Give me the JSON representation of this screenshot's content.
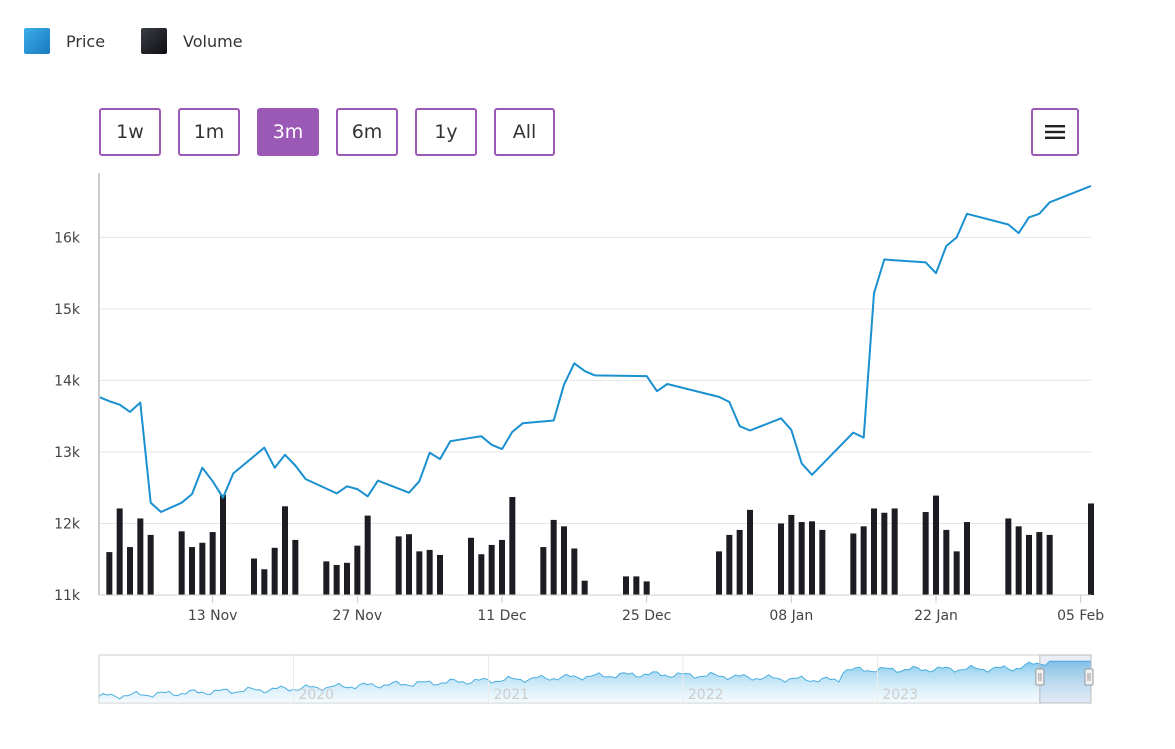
{
  "legend": [
    {
      "label": "Price",
      "color": "#1a90d0"
    },
    {
      "label": "Volume",
      "color": "#1c1c22"
    }
  ],
  "range_buttons": [
    {
      "label": "1w",
      "active": false
    },
    {
      "label": "1m",
      "active": false
    },
    {
      "label": "3m",
      "active": true
    },
    {
      "label": "6m",
      "active": false
    },
    {
      "label": "1y",
      "active": false
    },
    {
      "label": "All",
      "active": false
    }
  ],
  "menu": {
    "icon": "hamburger-menu-icon"
  },
  "colors": {
    "accent": "#9b59b6",
    "price": "#1a90d0",
    "volume": "#1c1c22",
    "grid": "#e6e6e6"
  },
  "chart_data": {
    "type": "line",
    "title": "",
    "xlabel": "",
    "ylabel": "",
    "ylim": [
      11000,
      16900
    ],
    "xlim": [
      "2023-11-02",
      "2024-02-06"
    ],
    "y_ticks": [
      {
        "label": "11k",
        "value": 11000
      },
      {
        "label": "12k",
        "value": 12000
      },
      {
        "label": "13k",
        "value": 13000
      },
      {
        "label": "14k",
        "value": 14000
      },
      {
        "label": "15k",
        "value": 15000
      },
      {
        "label": "16k",
        "value": 16000
      }
    ],
    "x_ticks": [
      {
        "label": "13 Nov",
        "date": "2023-11-13"
      },
      {
        "label": "27 Nov",
        "date": "2023-11-27"
      },
      {
        "label": "11 Dec",
        "date": "2023-12-11"
      },
      {
        "label": "25 Dec",
        "date": "2023-12-25"
      },
      {
        "label": "08 Jan",
        "date": "2024-01-08"
      },
      {
        "label": "22 Jan",
        "date": "2024-01-22"
      },
      {
        "label": "05 Feb",
        "date": "2024-02-05"
      }
    ],
    "series": [
      {
        "name": "Price",
        "points": [
          [
            "2023-11-02",
            13770
          ],
          [
            "2023-11-03",
            13710
          ],
          [
            "2023-11-04",
            13660
          ],
          [
            "2023-11-05",
            13560
          ],
          [
            "2023-11-06",
            13690
          ],
          [
            "2023-11-07",
            12290
          ],
          [
            "2023-11-08",
            12160
          ],
          [
            "2023-11-10",
            12290
          ],
          [
            "2023-11-11",
            12410
          ],
          [
            "2023-11-12",
            12780
          ],
          [
            "2023-11-13",
            12590
          ],
          [
            "2023-11-14",
            12360
          ],
          [
            "2023-11-15",
            12700
          ],
          [
            "2023-11-18",
            13060
          ],
          [
            "2023-11-19",
            12780
          ],
          [
            "2023-11-20",
            12960
          ],
          [
            "2023-11-21",
            12810
          ],
          [
            "2023-11-22",
            12620
          ],
          [
            "2023-11-25",
            12420
          ],
          [
            "2023-11-26",
            12520
          ],
          [
            "2023-11-27",
            12480
          ],
          [
            "2023-11-28",
            12380
          ],
          [
            "2023-11-29",
            12600
          ],
          [
            "2023-12-02",
            12430
          ],
          [
            "2023-12-03",
            12590
          ],
          [
            "2023-12-04",
            12990
          ],
          [
            "2023-12-05",
            12900
          ],
          [
            "2023-12-06",
            13150
          ],
          [
            "2023-12-09",
            13220
          ],
          [
            "2023-12-10",
            13100
          ],
          [
            "2023-12-11",
            13040
          ],
          [
            "2023-12-12",
            13280
          ],
          [
            "2023-12-13",
            13400
          ],
          [
            "2023-12-16",
            13440
          ],
          [
            "2023-12-17",
            13940
          ],
          [
            "2023-12-18",
            14240
          ],
          [
            "2023-12-19",
            14130
          ],
          [
            "2023-12-20",
            14070
          ],
          [
            "2023-12-25",
            14060
          ],
          [
            "2023-12-26",
            13850
          ],
          [
            "2023-12-27",
            13950
          ],
          [
            "2024-01-01",
            13770
          ],
          [
            "2024-01-02",
            13700
          ],
          [
            "2024-01-03",
            13360
          ],
          [
            "2024-01-04",
            13300
          ],
          [
            "2024-01-07",
            13470
          ],
          [
            "2024-01-08",
            13310
          ],
          [
            "2024-01-09",
            12840
          ],
          [
            "2024-01-10",
            12680
          ],
          [
            "2024-01-14",
            13270
          ],
          [
            "2024-01-15",
            13200
          ],
          [
            "2024-01-16",
            15220
          ],
          [
            "2024-01-17",
            15690
          ],
          [
            "2024-01-21",
            15650
          ],
          [
            "2024-01-22",
            15500
          ],
          [
            "2024-01-23",
            15880
          ],
          [
            "2024-01-24",
            16000
          ],
          [
            "2024-01-25",
            16330
          ],
          [
            "2024-01-29",
            16180
          ],
          [
            "2024-01-30",
            16060
          ],
          [
            "2024-01-31",
            16280
          ],
          [
            "2024-02-01",
            16330
          ],
          [
            "2024-02-02",
            16490
          ],
          [
            "2024-02-06",
            16720
          ]
        ]
      },
      {
        "name": "Volume",
        "baseline": 11000,
        "points": [
          [
            "2023-11-03",
            11600
          ],
          [
            "2023-11-04",
            12210
          ],
          [
            "2023-11-05",
            11670
          ],
          [
            "2023-11-06",
            12070
          ],
          [
            "2023-11-07",
            11840
          ],
          [
            "2023-11-10",
            11890
          ],
          [
            "2023-11-11",
            11670
          ],
          [
            "2023-11-12",
            11730
          ],
          [
            "2023-11-13",
            11880
          ],
          [
            "2023-11-14",
            12400
          ],
          [
            "2023-11-17",
            11510
          ],
          [
            "2023-11-18",
            11360
          ],
          [
            "2023-11-19",
            11660
          ],
          [
            "2023-11-20",
            12240
          ],
          [
            "2023-11-21",
            11770
          ],
          [
            "2023-11-24",
            11470
          ],
          [
            "2023-11-25",
            11420
          ],
          [
            "2023-11-26",
            11450
          ],
          [
            "2023-11-27",
            11690
          ],
          [
            "2023-11-28",
            12110
          ],
          [
            "2023-12-01",
            11820
          ],
          [
            "2023-12-02",
            11850
          ],
          [
            "2023-12-03",
            11610
          ],
          [
            "2023-12-04",
            11630
          ],
          [
            "2023-12-05",
            11560
          ],
          [
            "2023-12-08",
            11800
          ],
          [
            "2023-12-09",
            11570
          ],
          [
            "2023-12-10",
            11700
          ],
          [
            "2023-12-11",
            11770
          ],
          [
            "2023-12-12",
            12370
          ],
          [
            "2023-12-15",
            11670
          ],
          [
            "2023-12-16",
            12050
          ],
          [
            "2023-12-17",
            11960
          ],
          [
            "2023-12-18",
            11650
          ],
          [
            "2023-12-19",
            11200
          ],
          [
            "2023-12-23",
            11260
          ],
          [
            "2023-12-24",
            11260
          ],
          [
            "2023-12-25",
            11190
          ],
          [
            "2024-01-01",
            11610
          ],
          [
            "2024-01-02",
            11840
          ],
          [
            "2024-01-03",
            11910
          ],
          [
            "2024-01-04",
            12190
          ],
          [
            "2024-01-07",
            12000
          ],
          [
            "2024-01-08",
            12120
          ],
          [
            "2024-01-09",
            12020
          ],
          [
            "2024-01-10",
            12030
          ],
          [
            "2024-01-11",
            11910
          ],
          [
            "2024-01-14",
            11860
          ],
          [
            "2024-01-15",
            11960
          ],
          [
            "2024-01-16",
            12210
          ],
          [
            "2024-01-17",
            12150
          ],
          [
            "2024-01-18",
            12210
          ],
          [
            "2024-01-21",
            12160
          ],
          [
            "2024-01-22",
            12390
          ],
          [
            "2024-01-23",
            11910
          ],
          [
            "2024-01-24",
            11610
          ],
          [
            "2024-01-25",
            12020
          ],
          [
            "2024-01-29",
            12070
          ],
          [
            "2024-01-30",
            11960
          ],
          [
            "2024-01-31",
            11840
          ],
          [
            "2024-02-01",
            11880
          ],
          [
            "2024-02-02",
            11840
          ],
          [
            "2024-02-06",
            12280
          ]
        ]
      }
    ],
    "navigator": {
      "year_labels": [
        "2020",
        "2021",
        "2022",
        "2023"
      ],
      "xlim": [
        "2019-01-01",
        "2024-02-06"
      ],
      "selected_range": [
        "2023-11-02",
        "2024-02-06"
      ]
    },
    "grid": true,
    "legend_position": "top-left"
  }
}
